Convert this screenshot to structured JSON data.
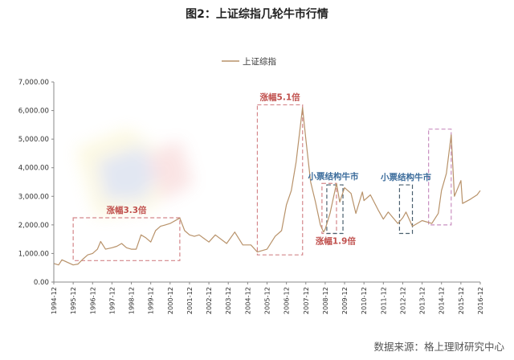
{
  "title": "图2：上证综指几轮牛市行情",
  "source": "数据来源：格上理财研究中心",
  "colors": {
    "line": "#b8926a",
    "red_box": "#d4868a",
    "dark_box": "#4a5f6e",
    "pink_box": "#c98fc0",
    "red_label": "#c0504d",
    "blue_label": "#3d6d9c",
    "axis": "#888888"
  },
  "chart_data": {
    "type": "line",
    "legend": {
      "position": "top-left",
      "entries": [
        "上证综指"
      ]
    },
    "ylim": [
      0,
      7000
    ],
    "yticks": [
      "0.00",
      "1,000.00",
      "2,000.00",
      "3,000.00",
      "4,000.00",
      "5,000.00",
      "6,000.00",
      "7,000.00"
    ],
    "xticks": [
      "1994-12",
      "1995-12",
      "1996-12",
      "1997-12",
      "1998-12",
      "1999-12",
      "2000-12",
      "2001-12",
      "2002-12",
      "2003-12",
      "2004-12",
      "2005-12",
      "2006-12",
      "2007-12",
      "2008-12",
      "2009-12",
      "2010-12",
      "2011-12",
      "2012-12",
      "2013-12",
      "2014-12",
      "2015-12",
      "2016-12"
    ],
    "grid": false,
    "series": [
      {
        "name": "上证综指",
        "points": [
          [
            "1994-12",
            650
          ],
          [
            "1995-03",
            600
          ],
          [
            "1995-05",
            780
          ],
          [
            "1995-08",
            700
          ],
          [
            "1995-12",
            600
          ],
          [
            "1996-03",
            630
          ],
          [
            "1996-06",
            800
          ],
          [
            "1996-09",
            950
          ],
          [
            "1996-12",
            1000
          ],
          [
            "1997-03",
            1150
          ],
          [
            "1997-05",
            1420
          ],
          [
            "1997-08",
            1150
          ],
          [
            "1997-12",
            1200
          ],
          [
            "1998-03",
            1250
          ],
          [
            "1998-06",
            1350
          ],
          [
            "1998-09",
            1200
          ],
          [
            "1998-12",
            1150
          ],
          [
            "1999-03",
            1150
          ],
          [
            "1999-06",
            1650
          ],
          [
            "1999-09",
            1550
          ],
          [
            "1999-12",
            1400
          ],
          [
            "2000-03",
            1800
          ],
          [
            "2000-06",
            1950
          ],
          [
            "2000-09",
            2000
          ],
          [
            "2000-12",
            2050
          ],
          [
            "2001-06",
            2240
          ],
          [
            "2001-09",
            1800
          ],
          [
            "2001-12",
            1650
          ],
          [
            "2002-03",
            1600
          ],
          [
            "2002-06",
            1650
          ],
          [
            "2002-12",
            1400
          ],
          [
            "2003-04",
            1650
          ],
          [
            "2003-11",
            1350
          ],
          [
            "2004-04",
            1750
          ],
          [
            "2004-09",
            1300
          ],
          [
            "2005-02",
            1300
          ],
          [
            "2005-06",
            1050
          ],
          [
            "2005-12",
            1150
          ],
          [
            "2006-05",
            1600
          ],
          [
            "2006-09",
            1800
          ],
          [
            "2006-12",
            2700
          ],
          [
            "2007-03",
            3200
          ],
          [
            "2007-06",
            4200
          ],
          [
            "2007-10",
            6100
          ],
          [
            "2007-12",
            5000
          ],
          [
            "2008-03",
            3500
          ],
          [
            "2008-06",
            2800
          ],
          [
            "2008-09",
            2000
          ],
          [
            "2008-11",
            1750
          ],
          [
            "2008-12",
            1850
          ],
          [
            "2009-03",
            2400
          ],
          [
            "2009-07",
            3450
          ],
          [
            "2009-09",
            2800
          ],
          [
            "2009-12",
            3300
          ],
          [
            "2010-04",
            3100
          ],
          [
            "2010-07",
            2400
          ],
          [
            "2010-11",
            3150
          ],
          [
            "2010-12",
            2850
          ],
          [
            "2011-04",
            3050
          ],
          [
            "2011-09",
            2500
          ],
          [
            "2011-12",
            2200
          ],
          [
            "2012-03",
            2450
          ],
          [
            "2012-09",
            2050
          ],
          [
            "2012-12",
            2250
          ],
          [
            "2013-02",
            2450
          ],
          [
            "2013-06",
            1950
          ],
          [
            "2013-12",
            2150
          ],
          [
            "2014-06",
            2050
          ],
          [
            "2014-10",
            2400
          ],
          [
            "2014-12",
            3200
          ],
          [
            "2015-03",
            3800
          ],
          [
            "2015-06",
            5150
          ],
          [
            "2015-08",
            3000
          ],
          [
            "2015-12",
            3550
          ],
          [
            "2016-01",
            2750
          ],
          [
            "2016-06",
            2900
          ],
          [
            "2016-10",
            3050
          ],
          [
            "2016-12",
            3200
          ]
        ]
      }
    ],
    "annotations": [
      {
        "text": "涨幅3.3倍",
        "color": "red",
        "box": {
          "from": "1995-12",
          "to": "2001-06",
          "low": 750,
          "high": 2250,
          "style": "red"
        }
      },
      {
        "text": "涨幅5.1倍",
        "color": "red",
        "box": {
          "from": "2005-06",
          "to": "2007-10",
          "low": 950,
          "high": 6200,
          "style": "red"
        }
      },
      {
        "text": "涨幅1.9倍",
        "color": "red",
        "box": {
          "from": "2008-10",
          "to": "2009-07",
          "low": 1700,
          "high": 3450,
          "style": "red"
        }
      },
      {
        "text": "小票结构牛市",
        "color": "blue",
        "box": {
          "from": "2009-01",
          "to": "2009-11",
          "low": 1700,
          "high": 3400,
          "style": "dark"
        }
      },
      {
        "text": "小票结构牛市",
        "color": "blue",
        "box": {
          "from": "2012-10",
          "to": "2013-06",
          "low": 1700,
          "high": 3400,
          "style": "dark"
        }
      },
      {
        "text": "",
        "color": "pink",
        "box": {
          "from": "2014-04",
          "to": "2015-06",
          "low": 2000,
          "high": 5350,
          "style": "pink"
        }
      }
    ]
  }
}
